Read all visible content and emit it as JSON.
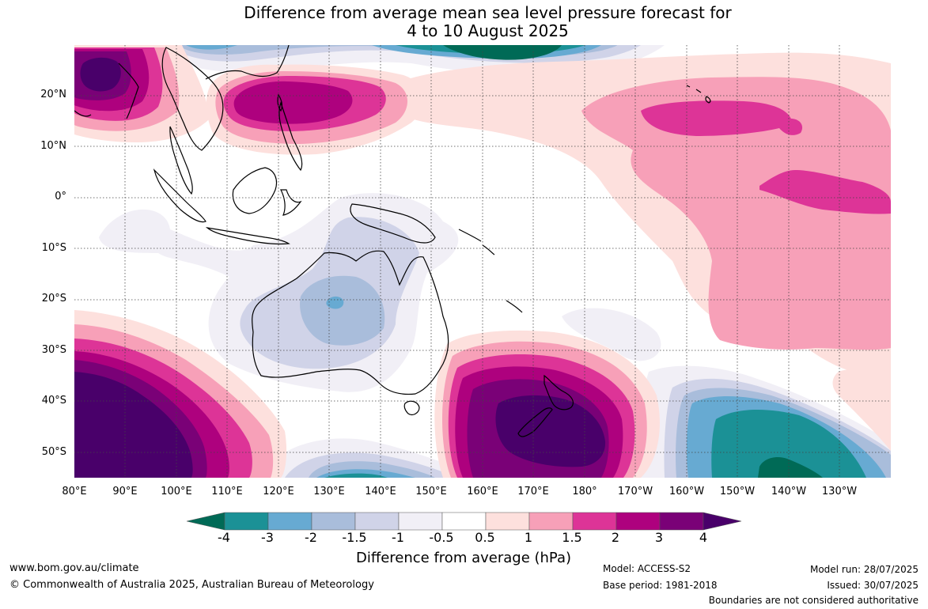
{
  "title": {
    "line1": "Difference from average mean sea level pressure forecast for",
    "line2": "4 to 10 August 2025"
  },
  "map": {
    "lat_labels": [
      "20°N",
      "10°N",
      "0°",
      "10°S",
      "20°S",
      "30°S",
      "40°S",
      "50°S"
    ],
    "lon_labels": [
      "80°E",
      "90°E",
      "100°E",
      "110°E",
      "120°E",
      "130°E",
      "140°E",
      "150°E",
      "160°E",
      "170°E",
      "180°",
      "170°W",
      "160°W",
      "150°W",
      "140°W",
      "130°W"
    ],
    "contour_colors": {
      "minus4_or_less": "#006a56",
      "minus4_to_minus3": "#1b9196",
      "minus3_to_minus2": "#67aad2",
      "minus2_to_minus1_5": "#a9bddb",
      "minus1_5_to_minus1": "#d0d3e8",
      "minus1_to_minus0_5": "#f1eff6",
      "minus0_5_to_0_5": "#ffffff",
      "p0_5_to_1": "#fde0dd",
      "p1_to_1_5": "#f7a0b8",
      "p1_5_to_2": "#dd3497",
      "p2_to_3": "#ae017e",
      "p3_to_4": "#7a0177",
      "p4_or_more": "#49006a"
    }
  },
  "colorbar": {
    "ticks": [
      "-4",
      "-3",
      "-2",
      "-1.5",
      "-1",
      "-0.5",
      "0.5",
      "1",
      "1.5",
      "2",
      "3",
      "4"
    ],
    "colors": [
      "#006a56",
      "#1b9196",
      "#67aad2",
      "#a9bddb",
      "#d0d3e8",
      "#f1eff6",
      "#ffffff",
      "#fde0dd",
      "#f7a0b8",
      "#dd3497",
      "#ae017e",
      "#7a0177",
      "#49006a"
    ],
    "title": "Difference from average (hPa)"
  },
  "footer": {
    "website": "www.bom.gov.au/climate",
    "copyright": "© Commonwealth of Australia 2025, Australian Bureau of Meteorology",
    "model": "Model: ACCESS-S2",
    "base_period": "Base period: 1981-2018",
    "model_run": "Model run: 28/07/2025",
    "issued": "Issued: 30/07/2025",
    "disclaimer": "Boundaries are not considered authoritative"
  }
}
